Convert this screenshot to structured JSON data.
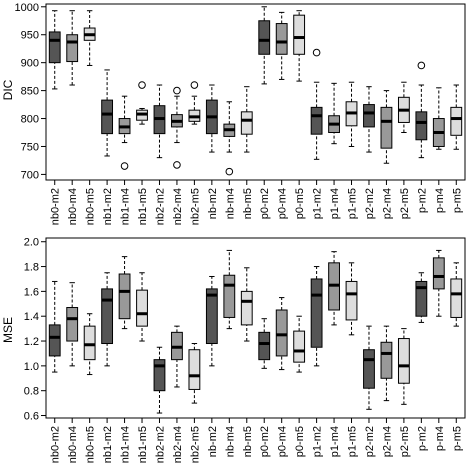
{
  "categories": [
    "nb0-m2",
    "nb0-m4",
    "nb0-m5",
    "nb1-m2",
    "nb1-m4",
    "nb1-m5",
    "nb2-m2",
    "nb2-m4",
    "nb2-m5",
    "nb-m2",
    "nb-m4",
    "nb-m5",
    "p0-m2",
    "p0-m4",
    "p0-m5",
    "p1-m2",
    "p1-m4",
    "p1-m5",
    "p2-m2",
    "p2-m4",
    "p2-m5",
    "p-m2",
    "p-m4",
    "p-m5"
  ],
  "colors": {
    "m2": "#555555",
    "m4": "#999999",
    "m5": "#dddddd",
    "axis": "#000000"
  },
  "chart_data": [
    {
      "type": "boxplot",
      "ylabel": "DIC",
      "ylim": [
        690,
        1005
      ],
      "yticks": [
        700,
        750,
        800,
        850,
        900,
        950,
        1000
      ],
      "grid": false,
      "legend": "none",
      "boxes": [
        {
          "lower": 853,
          "q1": 900,
          "median": 940,
          "q3": 955,
          "upper": 993,
          "outliers": []
        },
        {
          "lower": 860,
          "q1": 902,
          "median": 937,
          "q3": 950,
          "upper": 993,
          "outliers": []
        },
        {
          "lower": 895,
          "q1": 940,
          "median": 950,
          "q3": 962,
          "upper": 993,
          "outliers": []
        },
        {
          "lower": 733,
          "q1": 773,
          "median": 808,
          "q3": 833,
          "upper": 887,
          "outliers": []
        },
        {
          "lower": 757,
          "q1": 773,
          "median": 785,
          "q3": 800,
          "upper": 840,
          "outliers": [
            715
          ]
        },
        {
          "lower": 790,
          "q1": 797,
          "median": 808,
          "q3": 815,
          "upper": 818,
          "outliers": [
            860
          ]
        },
        {
          "lower": 730,
          "q1": 773,
          "median": 800,
          "q3": 823,
          "upper": 860,
          "outliers": []
        },
        {
          "lower": 757,
          "q1": 785,
          "median": 795,
          "q3": 807,
          "upper": 840,
          "outliers": [
            850,
            717
          ]
        },
        {
          "lower": 790,
          "q1": 795,
          "median": 803,
          "q3": 815,
          "upper": 840,
          "outliers": [
            860
          ]
        },
        {
          "lower": 740,
          "q1": 773,
          "median": 803,
          "q3": 833,
          "upper": 860,
          "outliers": []
        },
        {
          "lower": 740,
          "q1": 768,
          "median": 780,
          "q3": 790,
          "upper": 830,
          "outliers": [
            705
          ]
        },
        {
          "lower": 740,
          "q1": 772,
          "median": 797,
          "q3": 812,
          "upper": 857,
          "outliers": []
        },
        {
          "lower": 862,
          "q1": 915,
          "median": 940,
          "q3": 975,
          "upper": 1000,
          "outliers": []
        },
        {
          "lower": 870,
          "q1": 915,
          "median": 937,
          "q3": 970,
          "upper": 990,
          "outliers": []
        },
        {
          "lower": 867,
          "q1": 915,
          "median": 945,
          "q3": 985,
          "upper": 993,
          "outliers": []
        },
        {
          "lower": 727,
          "q1": 772,
          "median": 805,
          "q3": 820,
          "upper": 865,
          "outliers": [
            918
          ]
        },
        {
          "lower": 755,
          "q1": 775,
          "median": 790,
          "q3": 805,
          "upper": 863,
          "outliers": []
        },
        {
          "lower": 750,
          "q1": 787,
          "median": 810,
          "q3": 830,
          "upper": 865,
          "outliers": []
        },
        {
          "lower": 740,
          "q1": 785,
          "median": 810,
          "q3": 825,
          "upper": 857,
          "outliers": []
        },
        {
          "lower": 720,
          "q1": 747,
          "median": 795,
          "q3": 820,
          "upper": 850,
          "outliers": []
        },
        {
          "lower": 775,
          "q1": 793,
          "median": 815,
          "q3": 838,
          "upper": 865,
          "outliers": []
        },
        {
          "lower": 730,
          "q1": 762,
          "median": 793,
          "q3": 812,
          "upper": 860,
          "outliers": [
            895
          ]
        },
        {
          "lower": 745,
          "q1": 750,
          "median": 775,
          "q3": 800,
          "upper": 855,
          "outliers": []
        },
        {
          "lower": 745,
          "q1": 770,
          "median": 800,
          "q3": 820,
          "upper": 860,
          "outliers": []
        }
      ]
    },
    {
      "type": "boxplot",
      "ylabel": "MSE",
      "ylim": [
        0.58,
        2.03
      ],
      "yticks": [
        0.6,
        0.8,
        1.0,
        1.2,
        1.4,
        1.6,
        1.8,
        2.0
      ],
      "grid": false,
      "legend": "none",
      "boxes": [
        {
          "lower": 0.95,
          "q1": 1.08,
          "median": 1.23,
          "q3": 1.33,
          "upper": 1.68,
          "outliers": []
        },
        {
          "lower": 1.0,
          "q1": 1.2,
          "median": 1.38,
          "q3": 1.47,
          "upper": 1.67,
          "outliers": []
        },
        {
          "lower": 0.93,
          "q1": 1.05,
          "median": 1.17,
          "q3": 1.32,
          "upper": 1.42,
          "outliers": []
        },
        {
          "lower": 1.0,
          "q1": 1.18,
          "median": 1.53,
          "q3": 1.62,
          "upper": 1.75,
          "outliers": []
        },
        {
          "lower": 1.3,
          "q1": 1.38,
          "median": 1.6,
          "q3": 1.74,
          "upper": 1.88,
          "outliers": []
        },
        {
          "lower": 1.2,
          "q1": 1.32,
          "median": 1.42,
          "q3": 1.61,
          "upper": 1.75,
          "outliers": []
        },
        {
          "lower": 0.62,
          "q1": 0.8,
          "median": 1.0,
          "q3": 1.05,
          "upper": 1.15,
          "outliers": []
        },
        {
          "lower": 0.83,
          "q1": 1.05,
          "median": 1.15,
          "q3": 1.27,
          "upper": 1.32,
          "outliers": []
        },
        {
          "lower": 0.7,
          "q1": 0.81,
          "median": 0.92,
          "q3": 1.13,
          "upper": 1.18,
          "outliers": []
        },
        {
          "lower": 1.0,
          "q1": 1.18,
          "median": 1.57,
          "q3": 1.62,
          "upper": 1.72,
          "outliers": []
        },
        {
          "lower": 1.3,
          "q1": 1.39,
          "median": 1.65,
          "q3": 1.73,
          "upper": 1.93,
          "outliers": []
        },
        {
          "lower": 1.2,
          "q1": 1.33,
          "median": 1.52,
          "q3": 1.6,
          "upper": 1.79,
          "outliers": []
        },
        {
          "lower": 0.98,
          "q1": 1.05,
          "median": 1.18,
          "q3": 1.27,
          "upper": 1.38,
          "outliers": []
        },
        {
          "lower": 0.97,
          "q1": 1.08,
          "median": 1.25,
          "q3": 1.45,
          "upper": 1.55,
          "outliers": []
        },
        {
          "lower": 0.95,
          "q1": 1.03,
          "median": 1.12,
          "q3": 1.28,
          "upper": 1.4,
          "outliers": []
        },
        {
          "lower": 1.0,
          "q1": 1.15,
          "median": 1.57,
          "q3": 1.7,
          "upper": 1.8,
          "outliers": []
        },
        {
          "lower": 1.33,
          "q1": 1.45,
          "median": 1.65,
          "q3": 1.83,
          "upper": 1.92,
          "outliers": []
        },
        {
          "lower": 1.25,
          "q1": 1.37,
          "median": 1.58,
          "q3": 1.68,
          "upper": 1.83,
          "outliers": []
        },
        {
          "lower": 0.65,
          "q1": 0.82,
          "median": 1.05,
          "q3": 1.13,
          "upper": 1.32,
          "outliers": []
        },
        {
          "lower": 0.72,
          "q1": 0.9,
          "median": 1.1,
          "q3": 1.19,
          "upper": 1.32,
          "outliers": []
        },
        {
          "lower": 0.69,
          "q1": 0.86,
          "median": 1.0,
          "q3": 1.22,
          "upper": 1.3,
          "outliers": []
        },
        {
          "lower": 1.35,
          "q1": 1.4,
          "median": 1.63,
          "q3": 1.68,
          "upper": 1.75,
          "outliers": []
        },
        {
          "lower": 1.4,
          "q1": 1.62,
          "median": 1.72,
          "q3": 1.87,
          "upper": 1.93,
          "outliers": []
        },
        {
          "lower": 1.32,
          "q1": 1.39,
          "median": 1.58,
          "q3": 1.7,
          "upper": 1.83,
          "outliers": []
        }
      ]
    }
  ]
}
